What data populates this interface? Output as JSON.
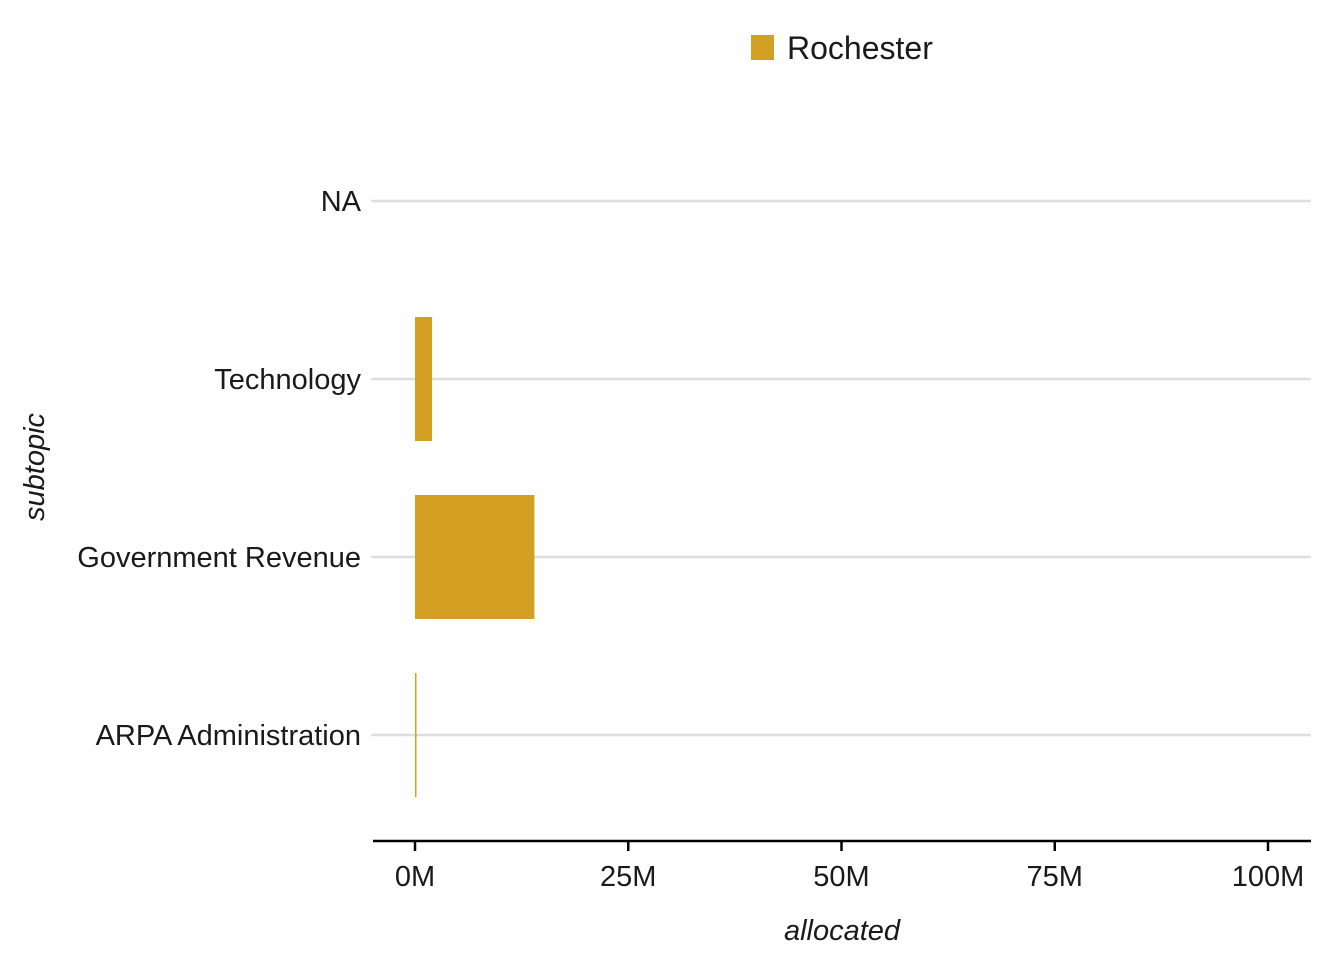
{
  "chart_data": {
    "type": "bar",
    "orientation": "horizontal",
    "categories": [
      "NA",
      "Technology",
      "Government Revenue",
      "ARPA Administration"
    ],
    "series": [
      {
        "name": "Rochester",
        "color": "#D4A024",
        "values": [
          0,
          2000000,
          14000000,
          150000
        ]
      }
    ],
    "xlabel": "allocated",
    "ylabel": "subtopic",
    "xlim": [
      0,
      100000000
    ],
    "x_ticks": [
      0,
      25000000,
      50000000,
      75000000,
      100000000
    ],
    "x_tick_labels": [
      "0M",
      "25M",
      "50M",
      "75M",
      "100M"
    ],
    "grid": "horizontal gridlines at categories",
    "legend_position": "top"
  }
}
